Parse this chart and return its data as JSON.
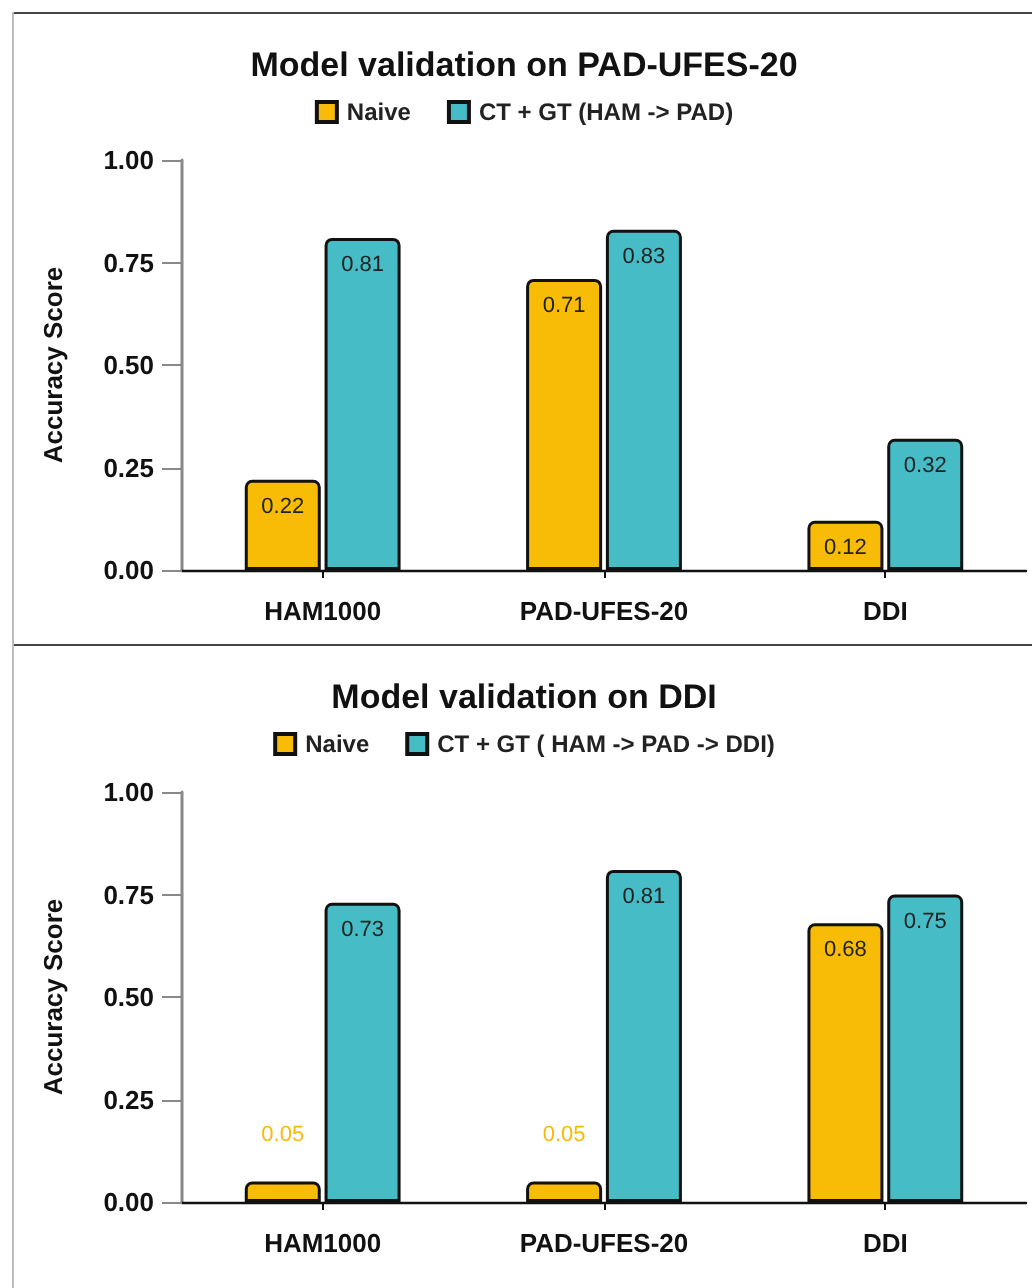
{
  "chart_data": [
    {
      "type": "bar",
      "title": "Model validation on PAD-UFES-20",
      "ylabel": "Accuracy Score",
      "categories": [
        "HAM1000",
        "PAD-UFES-20",
        "DDI"
      ],
      "series": [
        {
          "name": "Naive",
          "color": "#f8bb06",
          "values": [
            0.22,
            0.71,
            0.12
          ]
        },
        {
          "name": "CT + GT (HAM -> PAD)",
          "color": "#46bcc6",
          "values": [
            0.81,
            0.83,
            0.32
          ]
        }
      ],
      "ylim": [
        0,
        1
      ],
      "yticks": [
        "0.00",
        "0.25",
        "0.50",
        "0.75",
        "1.00"
      ],
      "grid": false,
      "legend": "top",
      "data_labels": true
    },
    {
      "type": "bar",
      "title": "Model validation on DDI",
      "ylabel": "Accuracy Score",
      "categories": [
        "HAM1000",
        "PAD-UFES-20",
        "DDI"
      ],
      "series": [
        {
          "name": "Naive",
          "color": "#f8bb06",
          "values": [
            0.05,
            0.05,
            0.68
          ]
        },
        {
          "name": "CT + GT ( HAM -> PAD -> DDI)",
          "color": "#46bcc6",
          "values": [
            0.73,
            0.81,
            0.75
          ]
        }
      ],
      "ylim": [
        0,
        1
      ],
      "yticks": [
        "0.00",
        "0.25",
        "0.50",
        "0.75",
        "1.00"
      ],
      "grid": false,
      "legend": "top",
      "data_labels": true
    }
  ]
}
